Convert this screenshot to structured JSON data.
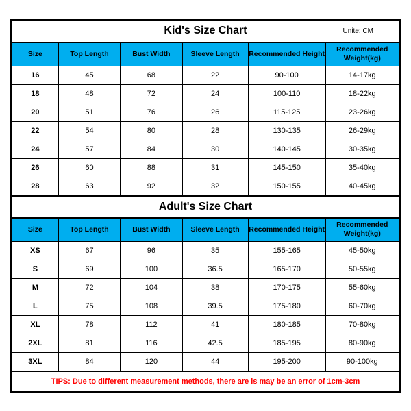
{
  "colors": {
    "header_bg": "#00aeef",
    "tips_color": "#ff0000",
    "border": "#000000",
    "background": "#ffffff"
  },
  "kids": {
    "title": "Kid's Size Chart",
    "unit_label": "Unite: CM",
    "columns": [
      "Size",
      "Top Length",
      "Bust Width",
      "Sleeve Length",
      "Recommended Height",
      "Recommended Weight(kg)"
    ],
    "rows": [
      [
        "16",
        "45",
        "68",
        "22",
        "90-100",
        "14-17kg"
      ],
      [
        "18",
        "48",
        "72",
        "24",
        "100-110",
        "18-22kg"
      ],
      [
        "20",
        "51",
        "76",
        "26",
        "115-125",
        "23-26kg"
      ],
      [
        "22",
        "54",
        "80",
        "28",
        "130-135",
        "26-29kg"
      ],
      [
        "24",
        "57",
        "84",
        "30",
        "140-145",
        "30-35kg"
      ],
      [
        "26",
        "60",
        "88",
        "31",
        "145-150",
        "35-40kg"
      ],
      [
        "28",
        "63",
        "92",
        "32",
        "150-155",
        "40-45kg"
      ]
    ]
  },
  "adults": {
    "title": "Adult's Size Chart",
    "columns": [
      "Size",
      "Top Length",
      "Bust Width",
      "Sleeve Length",
      "Recommended Height",
      "Recommended Weight(kg)"
    ],
    "rows": [
      [
        "XS",
        "67",
        "96",
        "35",
        "155-165",
        "45-50kg"
      ],
      [
        "S",
        "69",
        "100",
        "36.5",
        "165-170",
        "50-55kg"
      ],
      [
        "M",
        "72",
        "104",
        "38",
        "170-175",
        "55-60kg"
      ],
      [
        "L",
        "75",
        "108",
        "39.5",
        "175-180",
        "60-70kg"
      ],
      [
        "XL",
        "78",
        "112",
        "41",
        "180-185",
        "70-80kg"
      ],
      [
        "2XL",
        "81",
        "116",
        "42.5",
        "185-195",
        "80-90kg"
      ],
      [
        "3XL",
        "84",
        "120",
        "44",
        "195-200",
        "90-100kg"
      ]
    ]
  },
  "tips": "TIPS: Due to different measurement methods, there are is may be an error of 1cm-3cm"
}
